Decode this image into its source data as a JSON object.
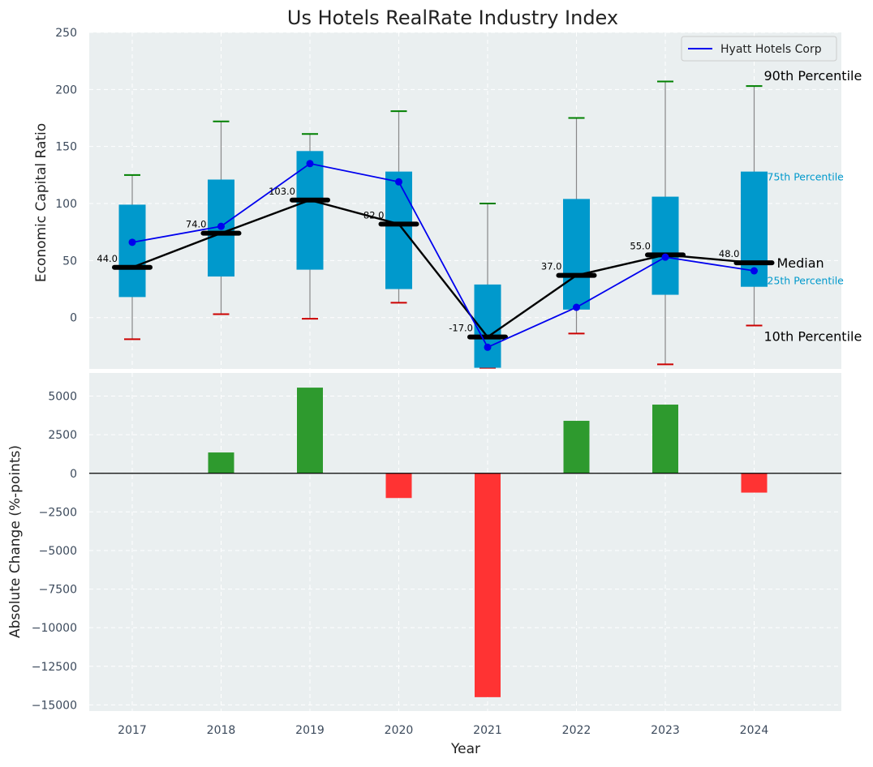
{
  "chart_data": [
    {
      "type": "box",
      "title": "Us Hotels RealRate Industry Index",
      "ylabel": "Economic Capital Ratio",
      "xlabel": "",
      "ylim": [
        -45,
        250
      ],
      "yticks": [
        0,
        50,
        100,
        150,
        200,
        250
      ],
      "grid": true,
      "legend_position": "top-right",
      "categories": [
        "2017",
        "2018",
        "2019",
        "2020",
        "2021",
        "2022",
        "2023",
        "2024"
      ],
      "percentiles": {
        "p10": [
          -19,
          3,
          -1,
          13,
          -44,
          -14,
          -41,
          -7
        ],
        "p25": [
          18,
          36,
          42,
          25,
          -44,
          7,
          20,
          27
        ],
        "median": [
          44,
          74,
          103,
          82,
          -17,
          37,
          55,
          48
        ],
        "p75": [
          99,
          121,
          146,
          128,
          29,
          104,
          106,
          128
        ],
        "p90": [
          125,
          172,
          161,
          181,
          100,
          175,
          207,
          203
        ]
      },
      "median_labels": [
        "44.0",
        "74.0",
        "103.0",
        "82.0",
        "-17.0",
        "37.0",
        "55.0",
        "48.0"
      ],
      "series": [
        {
          "name": "Hyatt Hotels Corp",
          "color": "#0000ee",
          "values": [
            66,
            80,
            135,
            119,
            -26,
            9,
            53,
            41
          ]
        }
      ],
      "annotations": {
        "p90": "90th Percentile",
        "p75": "75th Percentile",
        "median": "Median",
        "p25": "25th Percentile",
        "p10": "10th Percentile"
      },
      "colors": {
        "box": "#0099cc",
        "median_line": "#000000",
        "whisker_top": "#008000",
        "whisker_bottom": "#cc0000",
        "background": "#eaeff0"
      }
    },
    {
      "type": "bar",
      "title": "",
      "xlabel": "Year",
      "ylabel": "Absolute Change (%-points)",
      "ylim": [
        -15400,
        6500
      ],
      "yticks": [
        -15000,
        -12500,
        -10000,
        -7500,
        -5000,
        -2500,
        0,
        2500,
        5000
      ],
      "ytick_labels": [
        "−15000",
        "−12500",
        "−10000",
        "−7500",
        "−5000",
        "−2500",
        "0",
        "2500",
        "5000"
      ],
      "grid": true,
      "categories": [
        "2017",
        "2018",
        "2019",
        "2020",
        "2021",
        "2022",
        "2023",
        "2024"
      ],
      "values": [
        0,
        1350,
        5550,
        -1600,
        -14500,
        3400,
        4450,
        -1250
      ],
      "colors": {
        "positive": "#2e9a2e",
        "negative": "#ff3333"
      }
    }
  ]
}
